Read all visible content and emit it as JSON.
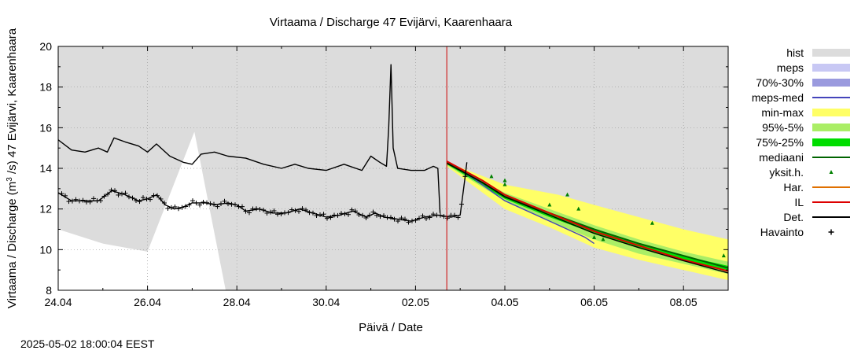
{
  "chart_data": {
    "type": "line",
    "title": "Virtaama / Discharge  47 Evijärvi, Kaarenhaara",
    "xlabel": "Päivä / Date",
    "ylabel_parts": {
      "pre": "Virtaama / Discharge (m",
      "sup": "3",
      "post": " /s)  47 Evijärvi, Kaarenhaara"
    },
    "ylim": [
      8,
      20
    ],
    "xlim_days": [
      0,
      15.0
    ],
    "xticks": [
      {
        "day": 0,
        "label": "24.04"
      },
      {
        "day": 2,
        "label": "26.04"
      },
      {
        "day": 4,
        "label": "28.04"
      },
      {
        "day": 6,
        "label": "30.04"
      },
      {
        "day": 8,
        "label": "02.05"
      },
      {
        "day": 10,
        "label": "04.05"
      },
      {
        "day": 12,
        "label": "06.05"
      },
      {
        "day": 14,
        "label": "08.05"
      }
    ],
    "yticks": [
      8,
      10,
      12,
      14,
      16,
      18,
      20
    ],
    "forecast_start_day": 8.7,
    "hist_band": {
      "upper": [
        [
          0,
          20
        ],
        [
          15,
          20
        ]
      ],
      "lower": [
        [
          0,
          11.0
        ],
        [
          1,
          10.3
        ],
        [
          2,
          9.9
        ],
        [
          3.05,
          15.8
        ],
        [
          3.75,
          8
        ],
        [
          15,
          8
        ]
      ]
    },
    "minmax_band": {
      "upper": [
        [
          8.7,
          14.3
        ],
        [
          10,
          13.2
        ],
        [
          11.2,
          12.7
        ],
        [
          12,
          12.2
        ],
        [
          13,
          11.6
        ],
        [
          14,
          11.0
        ],
        [
          15,
          10.5
        ]
      ],
      "lower": [
        [
          8.7,
          14.1
        ],
        [
          10,
          12.0
        ],
        [
          11,
          11.1
        ],
        [
          12,
          10.1
        ],
        [
          13,
          9.5
        ],
        [
          14,
          9.0
        ],
        [
          15,
          8.5
        ]
      ]
    },
    "p95_5_band": {
      "upper": [
        [
          8.7,
          14.3
        ],
        [
          10,
          12.8
        ],
        [
          11,
          12.0
        ],
        [
          12,
          11.2
        ],
        [
          13,
          10.5
        ],
        [
          14,
          9.9
        ],
        [
          15,
          9.4
        ]
      ],
      "lower": [
        [
          8.7,
          14.15
        ],
        [
          10,
          12.4
        ],
        [
          11,
          11.4
        ],
        [
          12,
          10.5
        ],
        [
          13,
          9.8
        ],
        [
          14,
          9.3
        ],
        [
          15,
          8.8
        ]
      ]
    },
    "p75_25_band": {
      "upper": [
        [
          8.7,
          14.3
        ],
        [
          10,
          12.7
        ],
        [
          11,
          11.8
        ],
        [
          12,
          11.0
        ],
        [
          13,
          10.3
        ],
        [
          14,
          9.7
        ],
        [
          15,
          9.2
        ]
      ],
      "lower": [
        [
          8.7,
          14.2
        ],
        [
          10,
          12.5
        ],
        [
          11,
          11.6
        ],
        [
          12,
          10.8
        ],
        [
          13,
          10.1
        ],
        [
          14,
          9.5
        ],
        [
          15,
          9.0
        ]
      ]
    },
    "series": [
      {
        "name": "meps-med",
        "color": "#4444bb",
        "points": [
          [
            8.7,
            14.3
          ],
          [
            9.3,
            13.5
          ],
          [
            10,
            12.4
          ],
          [
            10.6,
            11.8
          ],
          [
            11.2,
            11.2
          ],
          [
            11.8,
            10.6
          ],
          [
            12.0,
            10.3
          ]
        ]
      },
      {
        "name": "mediaani",
        "color": "#006400",
        "points": [
          [
            8.7,
            14.3
          ],
          [
            9.5,
            13.3
          ],
          [
            10,
            12.6
          ],
          [
            11,
            11.8
          ],
          [
            12,
            11.0
          ],
          [
            13,
            10.3
          ],
          [
            14,
            9.7
          ],
          [
            15,
            9.1
          ]
        ]
      },
      {
        "name": "IL",
        "color": "#dd0000",
        "points": [
          [
            8.7,
            14.35
          ],
          [
            9.5,
            13.4
          ],
          [
            10,
            12.7
          ],
          [
            11,
            11.8
          ],
          [
            12,
            10.9
          ],
          [
            13,
            10.2
          ],
          [
            14,
            9.5
          ],
          [
            15,
            8.95
          ]
        ]
      },
      {
        "name": "Det.",
        "color": "#000000",
        "points": [
          [
            8.7,
            14.25
          ],
          [
            9.5,
            13.3
          ],
          [
            10,
            12.6
          ],
          [
            11,
            11.7
          ],
          [
            12,
            10.8
          ],
          [
            13,
            10.1
          ],
          [
            14,
            9.45
          ],
          [
            15,
            8.85
          ]
        ]
      },
      {
        "name": "upper-obs",
        "color": "#000000",
        "points": [
          [
            0,
            15.4
          ],
          [
            0.3,
            14.9
          ],
          [
            0.6,
            14.8
          ],
          [
            0.9,
            15.0
          ],
          [
            1.1,
            14.8
          ],
          [
            1.25,
            15.5
          ],
          [
            1.5,
            15.3
          ],
          [
            1.8,
            15.1
          ],
          [
            2.0,
            14.8
          ],
          [
            2.2,
            15.2
          ],
          [
            2.5,
            14.6
          ],
          [
            2.8,
            14.3
          ],
          [
            3.0,
            14.2
          ],
          [
            3.2,
            14.7
          ],
          [
            3.5,
            14.8
          ],
          [
            3.8,
            14.6
          ],
          [
            4.2,
            14.5
          ],
          [
            4.6,
            14.2
          ],
          [
            5.0,
            14.0
          ],
          [
            5.3,
            14.2
          ],
          [
            5.6,
            14.0
          ],
          [
            6.0,
            13.9
          ],
          [
            6.4,
            14.2
          ],
          [
            6.8,
            13.9
          ],
          [
            7.0,
            14.6
          ],
          [
            7.2,
            14.3
          ],
          [
            7.35,
            14.1
          ],
          [
            7.4,
            16.0
          ],
          [
            7.45,
            19.1
          ],
          [
            7.5,
            15.0
          ],
          [
            7.6,
            14.0
          ],
          [
            7.9,
            13.9
          ],
          [
            8.2,
            13.9
          ],
          [
            8.4,
            14.1
          ],
          [
            8.5,
            14.0
          ],
          [
            8.55,
            11.8
          ]
        ]
      },
      {
        "name": "lower-obs",
        "color": "#000000",
        "points": [
          [
            0,
            12.8
          ],
          [
            0.3,
            12.4
          ],
          [
            0.6,
            12.4
          ],
          [
            0.9,
            12.4
          ],
          [
            1.2,
            12.9
          ],
          [
            1.5,
            12.7
          ],
          [
            1.8,
            12.4
          ],
          [
            2.0,
            12.5
          ],
          [
            2.2,
            12.7
          ],
          [
            2.4,
            12.2
          ],
          [
            2.6,
            12.0
          ],
          [
            2.8,
            12.1
          ],
          [
            3.0,
            12.3
          ],
          [
            3.3,
            12.3
          ],
          [
            3.5,
            12.2
          ],
          [
            3.8,
            12.3
          ],
          [
            4.0,
            12.2
          ],
          [
            4.2,
            11.9
          ],
          [
            4.5,
            12.0
          ],
          [
            4.8,
            11.8
          ],
          [
            5.1,
            11.8
          ],
          [
            5.4,
            12.0
          ],
          [
            5.7,
            11.8
          ],
          [
            6.0,
            11.6
          ],
          [
            6.3,
            11.7
          ],
          [
            6.6,
            11.9
          ],
          [
            6.9,
            11.6
          ],
          [
            7.1,
            11.8
          ],
          [
            7.3,
            11.6
          ],
          [
            7.6,
            11.5
          ],
          [
            7.9,
            11.4
          ],
          [
            8.2,
            11.6
          ],
          [
            8.5,
            11.7
          ],
          [
            8.8,
            11.6
          ],
          [
            9.0,
            11.7
          ],
          [
            9.1,
            13.4
          ],
          [
            9.15,
            14.3
          ]
        ]
      }
    ],
    "yksit_points": [
      [
        9.7,
        13.6
      ],
      [
        10.0,
        13.4
      ],
      [
        10.0,
        13.2
      ],
      [
        11.0,
        12.2
      ],
      [
        11.4,
        12.7
      ],
      [
        11.65,
        12.0
      ],
      [
        12.0,
        10.6
      ],
      [
        12.2,
        10.5
      ],
      [
        13.3,
        11.3
      ],
      [
        14.9,
        9.7
      ]
    ],
    "havainto_range": [
      8.95,
      9.18
    ],
    "legend": [
      {
        "label": "hist",
        "kind": "box",
        "color": "#dcdcdc"
      },
      {
        "label": "meps",
        "kind": "box",
        "color": "#c8c8f4"
      },
      {
        "label": "70%-30%",
        "kind": "box",
        "color": "#9a9ade"
      },
      {
        "label": "meps-med",
        "kind": "line",
        "color": "#4444bb"
      },
      {
        "label": "min-max",
        "kind": "box",
        "color": "#ffff66"
      },
      {
        "label": "95%-5%",
        "kind": "box",
        "color": "#aaee66"
      },
      {
        "label": "75%-25%",
        "kind": "box",
        "color": "#00dd00"
      },
      {
        "label": "mediaani",
        "kind": "line",
        "color": "#006400"
      },
      {
        "label": "yksit.h.",
        "kind": "tri",
        "color": "#008000"
      },
      {
        "label": "Har.",
        "kind": "line",
        "color": "#e07000"
      },
      {
        "label": "IL",
        "kind": "line",
        "color": "#dd0000"
      },
      {
        "label": "Det.",
        "kind": "line",
        "color": "#000000"
      },
      {
        "label": "Havainto",
        "kind": "plus",
        "color": "#000000"
      }
    ],
    "colors": {
      "hist": "#dcdcdc",
      "minmax": "#ffff66",
      "p95": "#aaee66",
      "p75": "#00dd00",
      "forecast_line": "#cc0000"
    }
  },
  "footer": {
    "timestamp": "2025-05-02 18:00:04 EEST"
  }
}
